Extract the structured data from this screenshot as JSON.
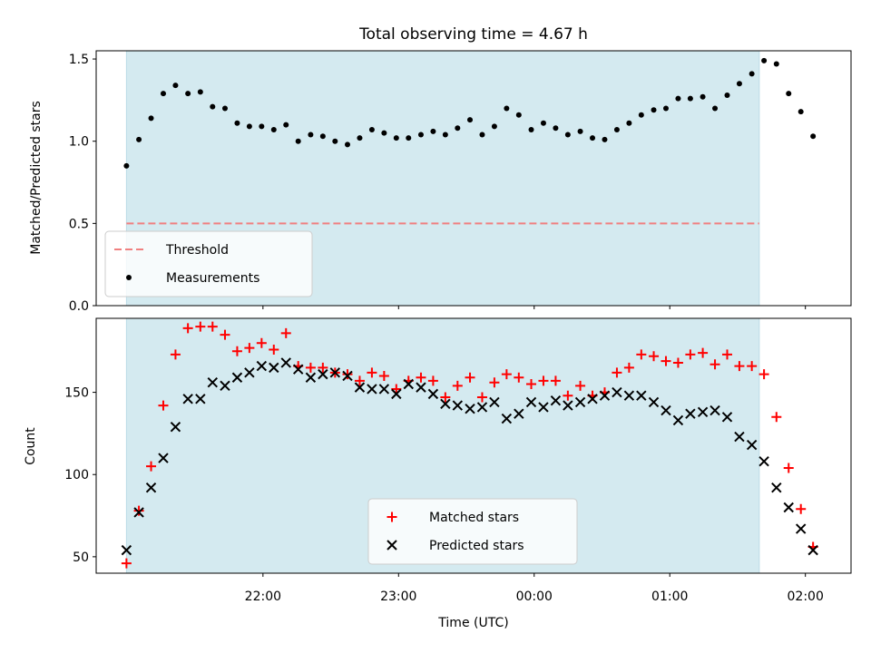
{
  "chart_data": {
    "title": "Total observing time = 4.67 h",
    "xlabel": "Time (UTC)",
    "x_ticks": [
      "22:00",
      "23:00",
      "00:00",
      "01:00",
      "02:00"
    ],
    "x_tick_minutes": [
      1320,
      1380,
      1440,
      1500,
      1560
    ],
    "x_range_minutes": [
      1246.2,
      1580.2
    ],
    "observing_window_minutes": [
      1259.6,
      1539.6
    ],
    "observing_window_color": "#d4eaf0",
    "panels": [
      {
        "type": "scatter",
        "ylabel": "Matched/Predicted stars",
        "ylim": [
          0.0,
          1.55
        ],
        "yticks": [
          "0.0",
          "0.5",
          "1.0",
          "1.5"
        ],
        "ytick_values": [
          0.0,
          0.5,
          1.0,
          1.5
        ],
        "legend_position": "lower-left",
        "threshold": {
          "name": "Threshold",
          "value": 0.5,
          "color": "#f08080",
          "style": "dashed"
        },
        "series": [
          {
            "name": "Measurements",
            "marker": "dot",
            "color": "#000000",
            "x": [
              1259.6,
              1265.1,
              1270.5,
              1275.9,
              1281.3,
              1286.8,
              1292.3,
              1297.7,
              1303.2,
              1308.6,
              1314.0,
              1319.4,
              1324.8,
              1330.2,
              1335.6,
              1341.1,
              1346.5,
              1351.9,
              1357.4,
              1362.8,
              1368.2,
              1373.6,
              1379.0,
              1384.4,
              1389.9,
              1395.3,
              1400.7,
              1406.1,
              1411.6,
              1417.0,
              1422.4,
              1427.8,
              1433.2,
              1438.7,
              1444.1,
              1449.5,
              1454.9,
              1460.4,
              1465.8,
              1471.2,
              1476.6,
              1482.0,
              1487.4,
              1492.9,
              1498.3,
              1503.7,
              1509.1,
              1514.6,
              1520.0,
              1525.4,
              1530.8,
              1536.3,
              1541.7,
              1547.2,
              1552.6,
              1558.0,
              1563.4
            ],
            "values": [
              0.85,
              1.01,
              1.14,
              1.29,
              1.34,
              1.29,
              1.3,
              1.21,
              1.2,
              1.11,
              1.09,
              1.09,
              1.07,
              1.1,
              1.0,
              1.04,
              1.03,
              1.0,
              0.98,
              1.02,
              1.07,
              1.05,
              1.02,
              1.02,
              1.04,
              1.06,
              1.04,
              1.08,
              1.13,
              1.04,
              1.09,
              1.2,
              1.16,
              1.07,
              1.11,
              1.08,
              1.04,
              1.06,
              1.02,
              1.01,
              1.07,
              1.11,
              1.16,
              1.19,
              1.2,
              1.26,
              1.26,
              1.27,
              1.2,
              1.28,
              1.35,
              1.41,
              1.49,
              1.47,
              1.29,
              1.18,
              1.03
            ]
          }
        ]
      },
      {
        "type": "scatter",
        "ylabel": "Count",
        "ylim": [
          40,
          195
        ],
        "yticks": [
          "50",
          "100",
          "150"
        ],
        "ytick_values": [
          50,
          100,
          150
        ],
        "legend_position": "lower-center",
        "series": [
          {
            "name": "Matched stars",
            "marker": "plus",
            "color": "#ff0000",
            "x": [
              1259.6,
              1265.1,
              1270.5,
              1275.9,
              1281.3,
              1286.8,
              1292.3,
              1297.7,
              1303.2,
              1308.6,
              1314.0,
              1319.4,
              1324.8,
              1330.2,
              1335.6,
              1341.1,
              1346.5,
              1351.9,
              1357.4,
              1362.8,
              1368.2,
              1373.6,
              1379.0,
              1384.4,
              1389.9,
              1395.3,
              1400.7,
              1406.1,
              1411.6,
              1417.0,
              1422.4,
              1427.8,
              1433.2,
              1438.7,
              1444.1,
              1449.5,
              1454.9,
              1460.4,
              1465.8,
              1471.2,
              1476.6,
              1482.0,
              1487.4,
              1492.9,
              1498.3,
              1503.7,
              1509.1,
              1514.6,
              1520.0,
              1525.4,
              1530.8,
              1536.3,
              1541.7,
              1547.2,
              1552.6,
              1558.0,
              1563.4
            ],
            "values": [
              46,
              78,
              105,
              142,
              173,
              189,
              190,
              190,
              185,
              175,
              177,
              180,
              176,
              186,
              166,
              165,
              165,
              162,
              161,
              157,
              162,
              160,
              152,
              157,
              159,
              157,
              147,
              154,
              159,
              147,
              156,
              161,
              159,
              155,
              157,
              157,
              148,
              154,
              148,
              150,
              162,
              165,
              173,
              172,
              169,
              168,
              173,
              174,
              167,
              173,
              166,
              166,
              161,
              135,
              104,
              79,
              56
            ]
          },
          {
            "name": "Predicted stars",
            "marker": "x",
            "color": "#000000",
            "x": [
              1259.6,
              1265.1,
              1270.5,
              1275.9,
              1281.3,
              1286.8,
              1292.3,
              1297.7,
              1303.2,
              1308.6,
              1314.0,
              1319.4,
              1324.8,
              1330.2,
              1335.6,
              1341.1,
              1346.5,
              1351.9,
              1357.4,
              1362.8,
              1368.2,
              1373.6,
              1379.0,
              1384.4,
              1389.9,
              1395.3,
              1400.7,
              1406.1,
              1411.6,
              1417.0,
              1422.4,
              1427.8,
              1433.2,
              1438.7,
              1444.1,
              1449.5,
              1454.9,
              1460.4,
              1465.8,
              1471.2,
              1476.6,
              1482.0,
              1487.4,
              1492.9,
              1498.3,
              1503.7,
              1509.1,
              1514.6,
              1520.0,
              1525.4,
              1530.8,
              1536.3,
              1541.7,
              1547.2,
              1552.6,
              1558.0,
              1563.4
            ],
            "values": [
              54,
              77,
              92,
              110,
              129,
              146,
              146,
              156,
              154,
              159,
              162,
              166,
              165,
              168,
              164,
              159,
              161,
              162,
              160,
              153,
              152,
              152,
              149,
              155,
              153,
              149,
              143,
              142,
              140,
              141,
              144,
              134,
              137,
              144,
              141,
              145,
              142,
              144,
              146,
              148,
              150,
              148,
              148,
              144,
              139,
              133,
              137,
              138,
              139,
              135,
              123,
              118,
              108,
              92,
              80,
              67,
              54
            ]
          }
        ]
      }
    ]
  }
}
